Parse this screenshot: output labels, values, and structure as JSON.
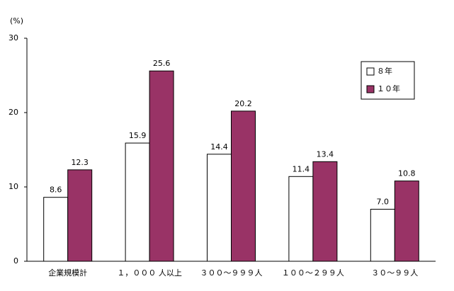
{
  "chart_data": {
    "type": "bar",
    "y_unit_label": "(%)",
    "categories": [
      "企業規模計",
      "１，０００ 人以上",
      "３００～９９９人",
      "１００～２９９人",
      "３０～９９人"
    ],
    "series": [
      {
        "name": "８年",
        "color": "#ffffff",
        "values": [
          8.6,
          15.9,
          14.4,
          11.4,
          7.0
        ],
        "value_labels": [
          "8.6",
          "15.9",
          "14.4",
          "11.4",
          "7.0"
        ]
      },
      {
        "name": "１０年",
        "color": "#993366",
        "values": [
          12.3,
          25.6,
          20.2,
          13.4,
          10.8
        ],
        "value_labels": [
          "12.3",
          "25.6",
          "20.2",
          "13.4",
          "10.8"
        ]
      }
    ],
    "ylim": [
      0,
      30
    ],
    "yticks": [
      0,
      10,
      20,
      30
    ],
    "grid": false,
    "legend": "upper-right"
  }
}
